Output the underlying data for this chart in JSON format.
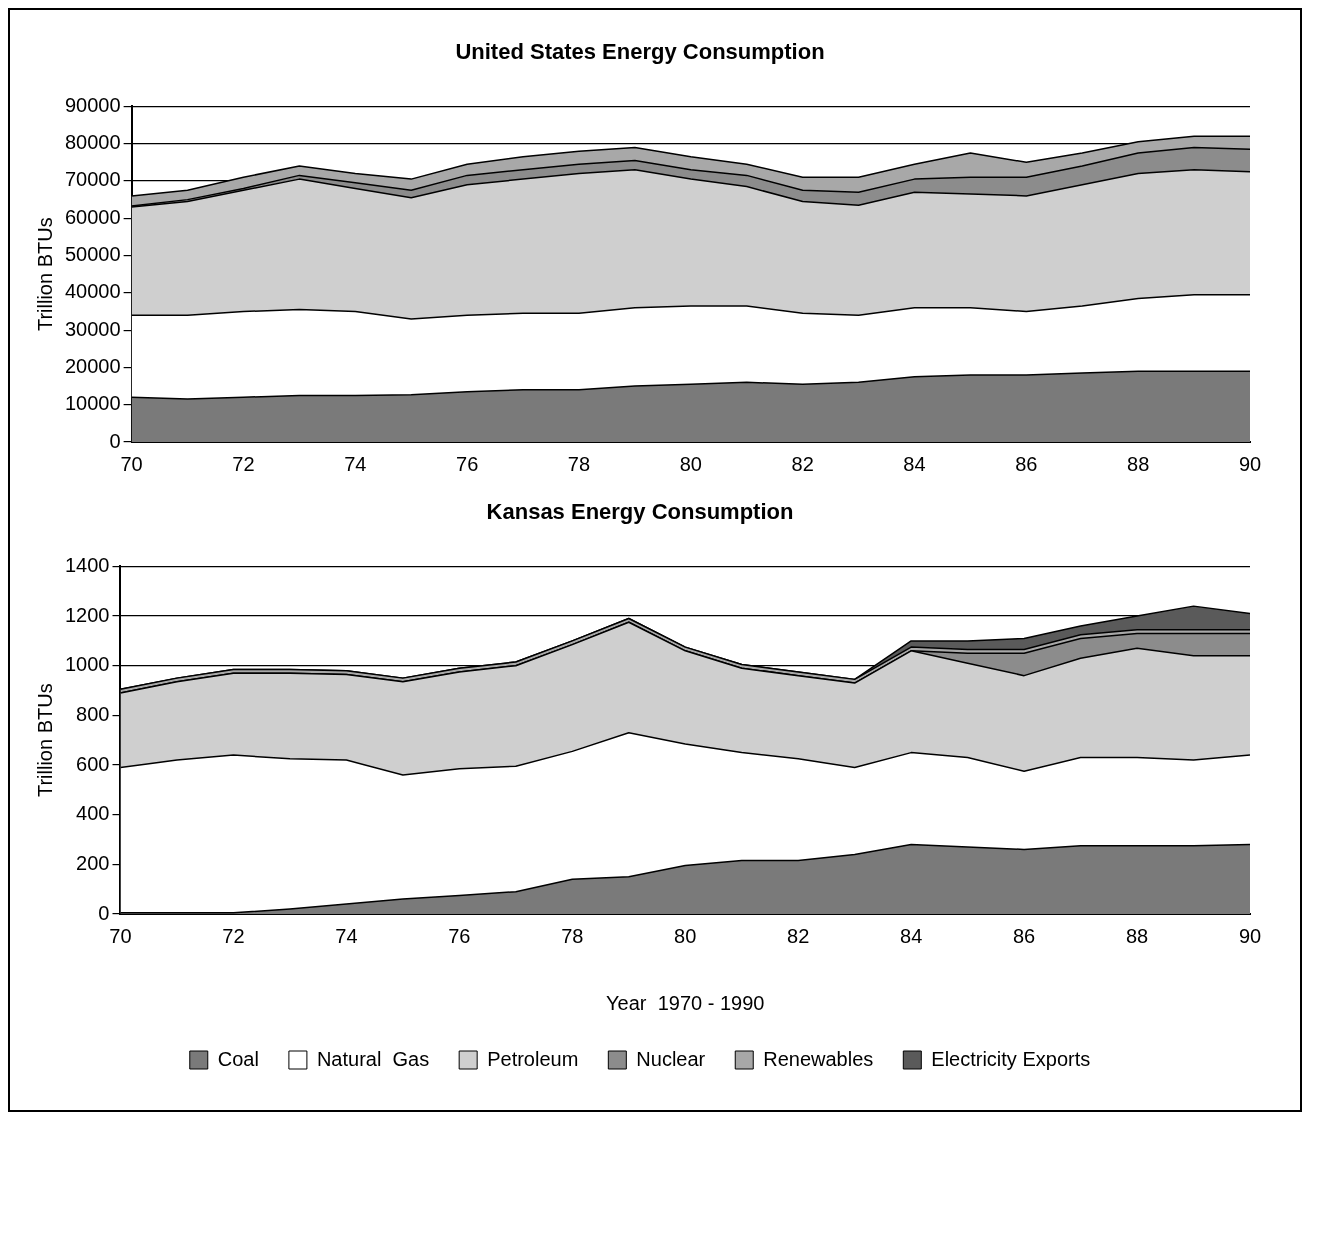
{
  "chart_data": [
    {
      "type": "area",
      "title": "United States Energy Consumption",
      "ylabel": "Trillion BTUs",
      "stacked": true,
      "x": [
        70,
        71,
        72,
        73,
        74,
        75,
        76,
        77,
        78,
        79,
        80,
        81,
        82,
        83,
        84,
        85,
        86,
        87,
        88,
        89,
        90
      ],
      "xlim": [
        70,
        90
      ],
      "xticks": [
        70,
        72,
        74,
        76,
        78,
        80,
        82,
        84,
        86,
        88,
        90
      ],
      "ylim": [
        0,
        90000
      ],
      "yticks": [
        0,
        10000,
        20000,
        30000,
        40000,
        50000,
        60000,
        70000,
        80000,
        90000
      ],
      "grid": "y",
      "legend": false,
      "series": [
        {
          "color": "#7a7a7a",
          "values": [
            12000,
            11500,
            12000,
            12500,
            12500,
            12700,
            13500,
            14000,
            14000,
            15000,
            15500,
            16000,
            15500,
            16000,
            17500,
            18000,
            18000,
            18500,
            19000,
            19000,
            19000
          ]
        },
        {
          "color": "#ffffff",
          "values": [
            22000,
            22500,
            23000,
            23000,
            22500,
            20300,
            20500,
            20500,
            20500,
            21000,
            21000,
            20500,
            19000,
            18000,
            18500,
            18000,
            17000,
            18000,
            19500,
            20500,
            20500
          ]
        },
        {
          "color": "#cfcfcf",
          "values": [
            29000,
            30500,
            32500,
            35000,
            33000,
            32500,
            35000,
            36000,
            37500,
            37000,
            34000,
            32000,
            30000,
            29500,
            31000,
            30500,
            31000,
            32500,
            33500,
            33500,
            33000
          ]
        },
        {
          "color": "#8c8c8c",
          "values": [
            300,
            500,
            500,
            1000,
            1500,
            2000,
            2500,
            2500,
            2500,
            2500,
            2500,
            3000,
            3000,
            3500,
            3500,
            4500,
            5000,
            5000,
            5500,
            6000,
            6000
          ]
        },
        {
          "color": "#a8a8a8",
          "values": [
            2700,
            2500,
            3000,
            2500,
            2500,
            3000,
            3000,
            3500,
            3500,
            3500,
            3500,
            3000,
            3500,
            4000,
            4000,
            6500,
            4000,
            3500,
            3000,
            3000,
            3500
          ]
        }
      ]
    },
    {
      "type": "area",
      "title": "Kansas Energy Consumption",
      "ylabel": "Trillion BTUs",
      "xlabel": "Year  1970 - 1990",
      "stacked": true,
      "x": [
        70,
        71,
        72,
        73,
        74,
        75,
        76,
        77,
        78,
        79,
        80,
        81,
        82,
        83,
        84,
        85,
        86,
        87,
        88,
        89,
        90
      ],
      "xlim": [
        70,
        90
      ],
      "xticks": [
        70,
        72,
        74,
        76,
        78,
        80,
        82,
        84,
        86,
        88,
        90
      ],
      "ylim": [
        0,
        1400
      ],
      "yticks": [
        0,
        200,
        400,
        600,
        800,
        1000,
        1200,
        1400
      ],
      "grid": "y",
      "legend": "bottom",
      "series": [
        {
          "name": "Coal",
          "color": "#7a7a7a",
          "values": [
            5,
            5,
            5,
            20,
            40,
            60,
            75,
            90,
            140,
            150,
            195,
            215,
            215,
            240,
            280,
            270,
            260,
            275,
            275,
            275,
            280
          ]
        },
        {
          "name": "Natural  Gas",
          "color": "#ffffff",
          "values": [
            585,
            615,
            635,
            605,
            580,
            500,
            510,
            505,
            515,
            580,
            490,
            435,
            410,
            350,
            370,
            360,
            315,
            355,
            355,
            345,
            360
          ]
        },
        {
          "name": "Petroleum",
          "color": "#cfcfcf",
          "values": [
            300,
            315,
            330,
            345,
            345,
            375,
            390,
            405,
            430,
            445,
            375,
            340,
            335,
            340,
            410,
            380,
            385,
            400,
            440,
            420,
            400
          ]
        },
        {
          "name": "Nuclear",
          "color": "#8c8c8c",
          "values": [
            0,
            0,
            0,
            0,
            0,
            0,
            0,
            0,
            0,
            0,
            0,
            0,
            0,
            0,
            0,
            40,
            90,
            80,
            60,
            90,
            90
          ]
        },
        {
          "name": "Renewables",
          "color": "#a8a8a8",
          "values": [
            15,
            15,
            15,
            15,
            15,
            15,
            15,
            15,
            15,
            15,
            15,
            15,
            15,
            15,
            15,
            15,
            15,
            15,
            15,
            15,
            15
          ]
        },
        {
          "name": "Electricity Exports",
          "color": "#5a5a5a",
          "values": [
            0,
            0,
            0,
            0,
            0,
            0,
            0,
            0,
            0,
            0,
            0,
            0,
            0,
            0,
            25,
            35,
            45,
            35,
            55,
            95,
            65
          ]
        }
      ]
    }
  ]
}
